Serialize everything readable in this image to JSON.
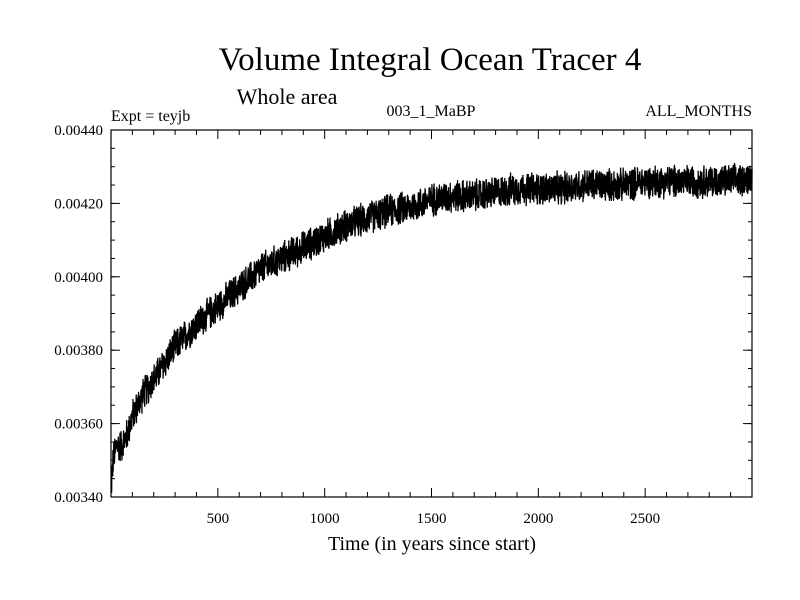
{
  "chart_data": {
    "type": "line",
    "title": "Volume Integral Ocean Tracer 4",
    "subtitle": "Whole area",
    "experiment_label": "Expt = teyjb",
    "run_label": "003_1_MaBP",
    "period_label": "ALL_MONTHS",
    "xlabel": "Time (in years since start)",
    "ylabel": "",
    "xlim": [
      0,
      3000
    ],
    "ylim": [
      0.0034,
      0.0044
    ],
    "x_ticks": [
      500,
      1000,
      1500,
      2000,
      2500
    ],
    "y_ticks": [
      0.0034,
      0.0036,
      0.0038,
      0.004,
      0.0042,
      0.0044
    ],
    "y_tick_labels": [
      "0.00340",
      "0.00360",
      "0.00380",
      "0.00400",
      "0.00420",
      "0.00440"
    ],
    "grid": false,
    "series": [
      {
        "name": "Volume Integral Ocean Tracer 4",
        "x": [
          0,
          10,
          25,
          50,
          75,
          100,
          150,
          200,
          300,
          400,
          500,
          600,
          700,
          800,
          900,
          1000,
          1100,
          1200,
          1300,
          1400,
          1500,
          1600,
          1700,
          1800,
          1900,
          2000,
          2100,
          2200,
          2300,
          2400,
          2500,
          2600,
          2700,
          2800,
          2900,
          3000
        ],
        "values": [
          0.00342,
          0.0035,
          0.00354,
          0.00354,
          0.00357,
          0.00362,
          0.00368,
          0.00372,
          0.00381,
          0.00387,
          0.00392,
          0.00397,
          0.00402,
          0.00405,
          0.00408,
          0.00411,
          0.00414,
          0.00416,
          0.00418,
          0.00419,
          0.00421,
          0.00422,
          0.00422,
          0.00423,
          0.00424,
          0.00424,
          0.00424,
          0.00425,
          0.00425,
          0.00425,
          0.00426,
          0.00426,
          0.00426,
          0.00426,
          0.00426,
          0.00427
        ],
        "noise_amplitude": 5e-05,
        "color": "#000000"
      }
    ]
  }
}
